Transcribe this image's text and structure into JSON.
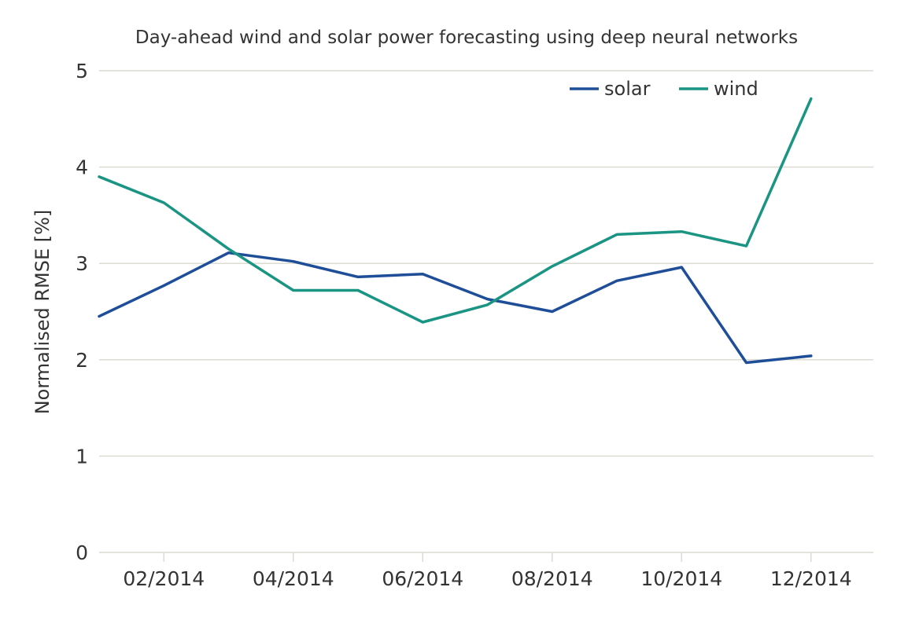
{
  "chart_data": {
    "type": "line",
    "title": "Day-ahead wind and solar power forecasting using deep neural networks",
    "xlabel": "",
    "ylabel": "Normalised RMSE [%]",
    "categories": [
      "01/2014",
      "02/2014",
      "03/2014",
      "04/2014",
      "05/2014",
      "06/2014",
      "07/2014",
      "08/2014",
      "09/2014",
      "10/2014",
      "11/2014",
      "12/2014"
    ],
    "x_tick_labels": [
      "02/2014",
      "04/2014",
      "06/2014",
      "08/2014",
      "10/2014",
      "12/2014"
    ],
    "y_tick_labels": [
      "0",
      "1",
      "2",
      "3",
      "4",
      "5"
    ],
    "ylim": [
      0,
      5
    ],
    "grid": true,
    "legend_position": "top-right",
    "series": [
      {
        "name": "solar",
        "color": "#1f4e99",
        "values": [
          2.45,
          2.77,
          3.11,
          3.02,
          2.86,
          2.89,
          2.63,
          2.5,
          2.82,
          2.96,
          1.97,
          2.04
        ]
      },
      {
        "name": "wind",
        "color": "#1a9483",
        "values": [
          3.9,
          3.63,
          3.15,
          2.72,
          2.72,
          2.39,
          2.57,
          2.97,
          3.3,
          3.33,
          3.18,
          4.71
        ]
      }
    ]
  }
}
